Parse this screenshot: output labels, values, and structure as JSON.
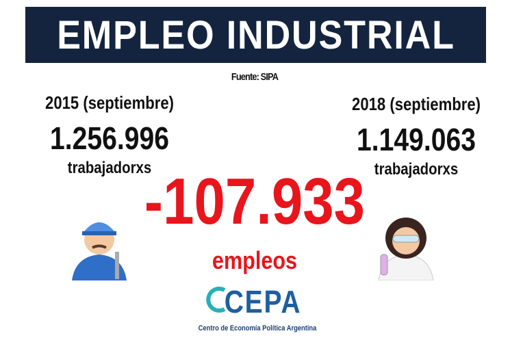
{
  "header": {
    "title": "EMPLEO INDUSTRIAL",
    "source": "Fuente: SIPA"
  },
  "left": {
    "period": "2015 (septiembre)",
    "count": "1.256.996",
    "unit": "trabajadorxs"
  },
  "right": {
    "period": "2018 (septiembre)",
    "count": "1.149.063",
    "unit": "trabajadorxs"
  },
  "center": {
    "change": "-107.933",
    "unit": "empleos"
  },
  "logo": {
    "name": "CEPA",
    "full_name": "Centro de Economía Política Argentina"
  }
}
